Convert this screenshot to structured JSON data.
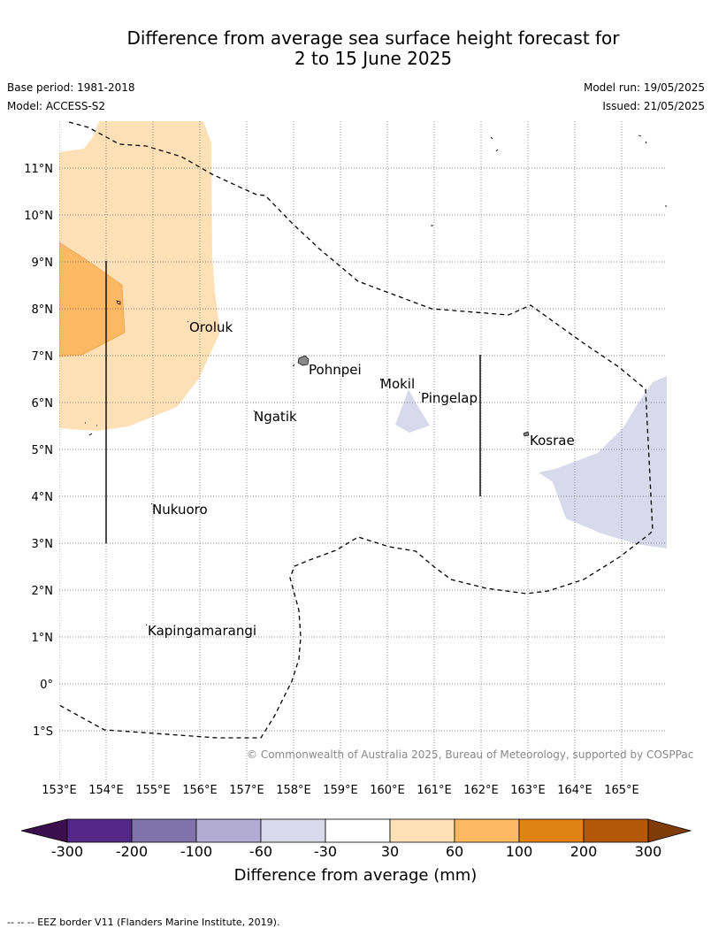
{
  "title_line1": "Difference from average sea surface height forecast for",
  "title_line2": "2 to 15 June 2025",
  "base_period": "Base period: 1981-2018",
  "model": "Model: ACCESS-S2",
  "model_run": "Model run: 19/05/2025",
  "issued": "Issued: 21/05/2025",
  "copyright": "© Commonwealth of Australia 2025, Bureau of Meteorology, supported by COSPPac",
  "footnote": "--  --  -- EEZ border V11 (Flanders Marine Institute, 2019).",
  "map": {
    "lat_labels": [
      "11°N",
      "10°N",
      "9°N",
      "8°N",
      "7°N",
      "6°N",
      "5°N",
      "4°N",
      "3°N",
      "2°N",
      "1°N",
      "0°",
      "1°S"
    ],
    "lon_labels": [
      "153°E",
      "154°E",
      "155°E",
      "156°E",
      "157°E",
      "158°E",
      "159°E",
      "160°E",
      "161°E",
      "162°E",
      "163°E",
      "164°E",
      "165°E"
    ],
    "places": [
      "Oroluk",
      "Pohnpei",
      "Mokil",
      "Pingelap",
      "Ngatik",
      "Kosrae",
      "Nukuoro",
      "Kapingamarangi"
    ]
  },
  "colorbar": {
    "title": "Difference from average (mm)",
    "tick_labels": [
      "-300",
      "-200",
      "-100",
      "-60",
      "-30",
      "30",
      "60",
      "100",
      "200",
      "300"
    ],
    "colors": [
      "#3b0f4d",
      "#542787",
      "#8073ac",
      "#b2abd2",
      "#d8daeb",
      "#ffffff",
      "#fee0b6",
      "#fdb863",
      "#e08214",
      "#b35806",
      "#7f3b08"
    ]
  }
}
